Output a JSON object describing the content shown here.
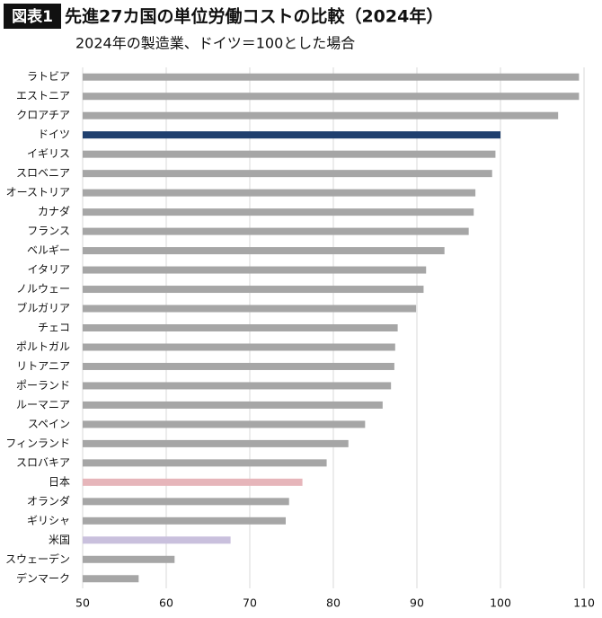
{
  "badge": "図表1",
  "chart_data": {
    "type": "barh",
    "title": "先進27カ国の単位労働コストの比較（2024年）",
    "subtitle": "2024年の製造業、ドイツ＝100とした場合",
    "categories": [
      "ラトビア",
      "エストニア",
      "クロアチア",
      "ドイツ",
      "イギリス",
      "スロベニア",
      "オーストリア",
      "カナダ",
      "フランス",
      "ベルギー",
      "イタリア",
      "ノルウェー",
      "ブルガリア",
      "チェコ",
      "ポルトガル",
      "リトアニア",
      "ポーランド",
      "ルーマニア",
      "スペイン",
      "フィンランド",
      "スロバキア",
      "日本",
      "オランダ",
      "ギリシャ",
      "米国",
      "スウェーデン",
      "デンマーク"
    ],
    "values": [
      109.4,
      109.4,
      106.9,
      100,
      99.4,
      99.0,
      97.0,
      96.8,
      96.2,
      93.3,
      91.1,
      90.8,
      89.9,
      87.7,
      87.4,
      87.3,
      86.9,
      85.9,
      83.8,
      81.8,
      79.2,
      76.3,
      74.7,
      74.3,
      67.7,
      61.0,
      56.7
    ],
    "colors": [
      "#a6a6a6",
      "#a6a6a6",
      "#a6a6a6",
      "#1f3f6e",
      "#a6a6a6",
      "#a6a6a6",
      "#a6a6a6",
      "#a6a6a6",
      "#a6a6a6",
      "#a6a6a6",
      "#a6a6a6",
      "#a6a6a6",
      "#a6a6a6",
      "#a6a6a6",
      "#a6a6a6",
      "#a6a6a6",
      "#a6a6a6",
      "#a6a6a6",
      "#a6a6a6",
      "#a6a6a6",
      "#a6a6a6",
      "#e6b5ba",
      "#a6a6a6",
      "#a6a6a6",
      "#c9c0dd",
      "#a6a6a6",
      "#a6a6a6"
    ],
    "xlim": [
      50,
      110
    ],
    "xticks": [
      50,
      60,
      70,
      80,
      90,
      100,
      110
    ],
    "grid": true
  }
}
